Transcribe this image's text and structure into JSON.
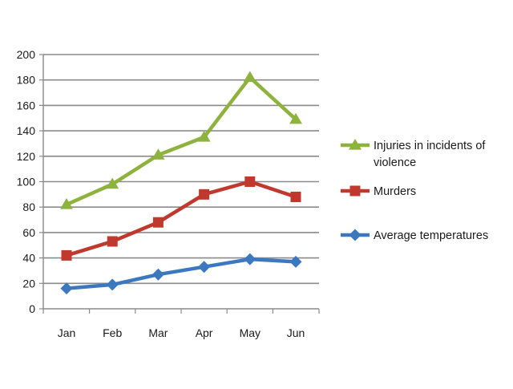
{
  "chart_data": {
    "type": "line",
    "title": "",
    "xlabel": "",
    "ylabel": "",
    "categories": [
      "Jan",
      "Feb",
      "Mar",
      "Apr",
      "May",
      "Jun"
    ],
    "ylim": [
      0,
      200
    ],
    "yticks": [
      0,
      20,
      40,
      60,
      80,
      100,
      120,
      140,
      160,
      180,
      200
    ],
    "grid": true,
    "legend_position": "right",
    "series": [
      {
        "name_lines": [
          "Injuries in incidents of",
          "violence"
        ],
        "name": "Injuries in incidents of violence",
        "values": [
          82,
          98,
          121,
          135,
          182,
          149
        ],
        "color": "#8db23d",
        "marker": "triangle"
      },
      {
        "name_lines": [
          "Murders"
        ],
        "name": "Murders",
        "values": [
          42,
          53,
          68,
          90,
          100,
          88
        ],
        "color": "#c0392f",
        "marker": "square"
      },
      {
        "name_lines": [
          "Average temperatures"
        ],
        "name": "Average temperatures",
        "values": [
          16,
          19,
          27,
          33,
          39,
          37
        ],
        "color": "#3b78c0",
        "marker": "diamond"
      }
    ]
  }
}
